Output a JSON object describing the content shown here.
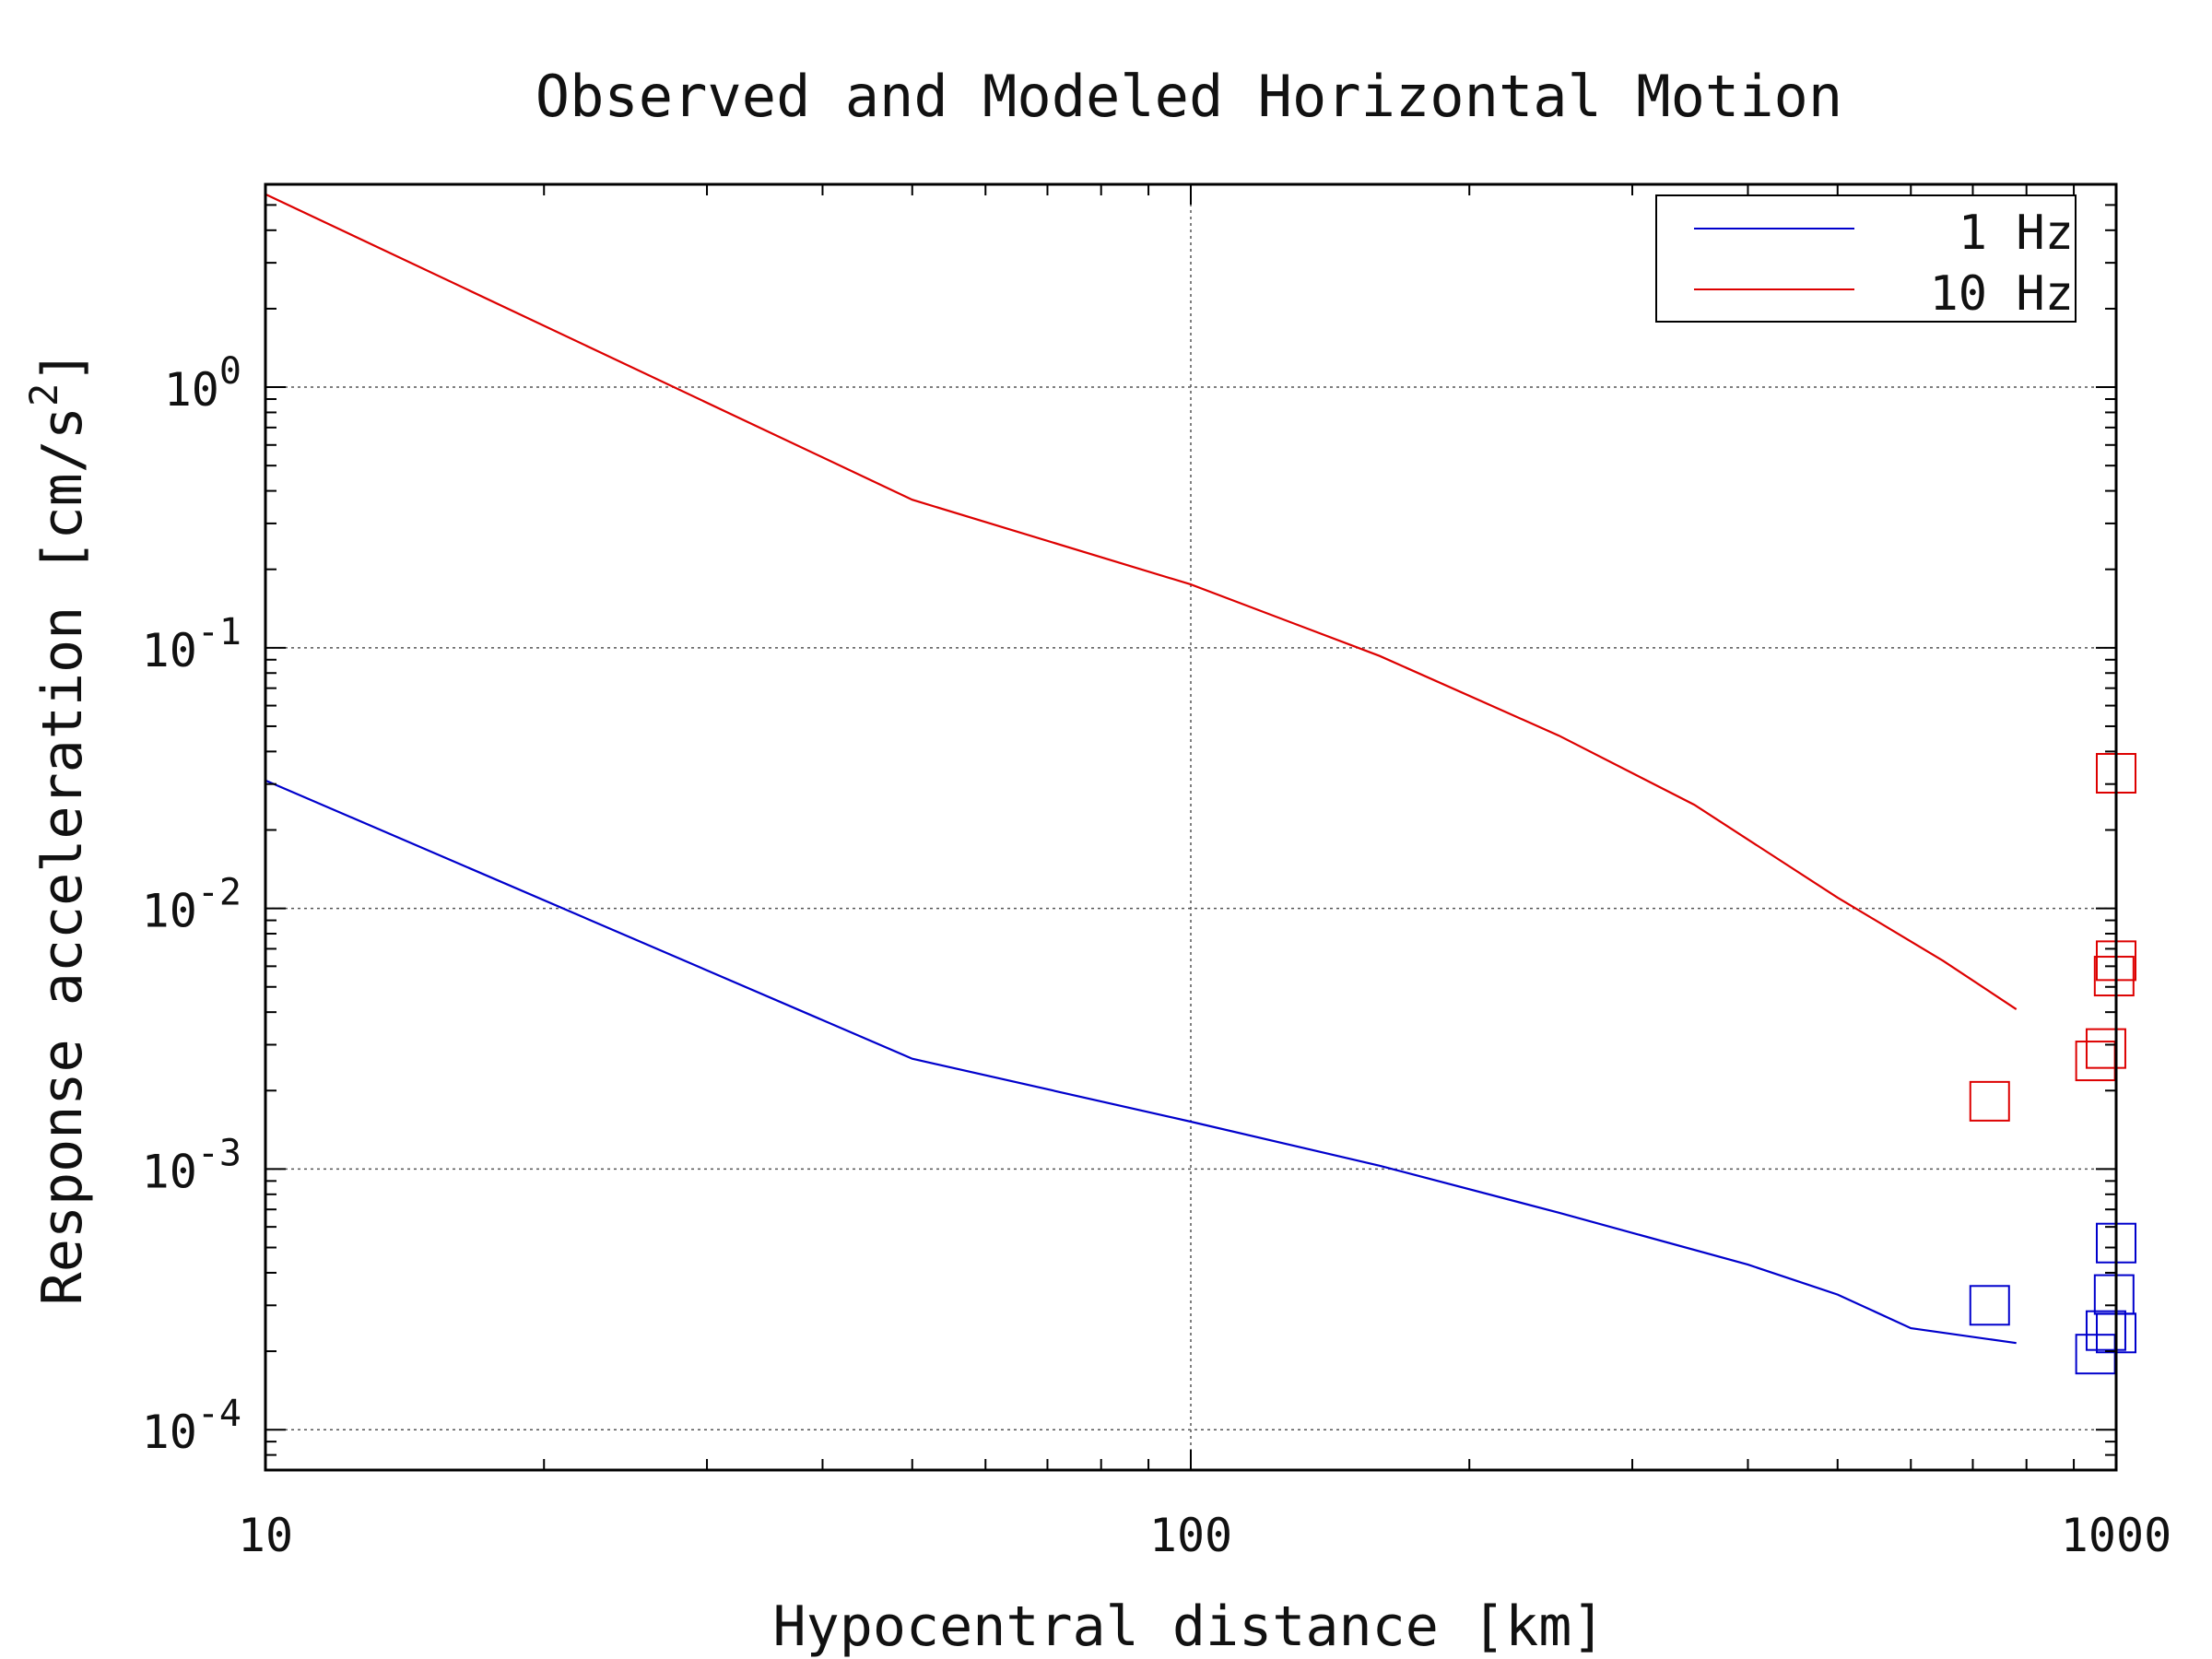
{
  "chart_data": {
    "type": "line",
    "title": "Observed and Modeled Horizontal Motion",
    "xlabel": "Hypocentral distance [km]",
    "ylabel_main": "Response acceleration [cm/s",
    "ylabel_sup": "2",
    "ylabel_end": "]",
    "x_scale": "log",
    "y_scale": "log",
    "xlim": [
      10,
      1000
    ],
    "ylim": [
      7e-05,
      6
    ],
    "grid": true,
    "legend_position": "top-right",
    "x_ticks": [
      {
        "value": 10,
        "label": "10"
      },
      {
        "value": 100,
        "label": "100"
      },
      {
        "value": 1000,
        "label": "1000"
      }
    ],
    "y_ticks": [
      {
        "value": 1,
        "base": "10",
        "exp": "0"
      },
      {
        "value": 0.1,
        "base": "10",
        "exp": "-1"
      },
      {
        "value": 0.01,
        "base": "10",
        "exp": "-2"
      },
      {
        "value": 0.001,
        "base": "10",
        "exp": "-3"
      },
      {
        "value": 0.0001,
        "base": "10",
        "exp": "-4"
      }
    ],
    "series": [
      {
        "name": "1 Hz",
        "color": "#0000cc",
        "line": [
          [
            10,
            0.031
          ],
          [
            50,
            0.00265
          ],
          [
            100,
            0.00152
          ],
          [
            160,
            0.00103
          ],
          [
            250,
            0.00068
          ],
          [
            400,
            0.00043
          ],
          [
            500,
            0.00033
          ],
          [
            600,
            0.000245
          ],
          [
            780,
            0.000215
          ]
        ],
        "points": [
          [
            730,
            0.0003
          ],
          [
            950,
            0.000195
          ],
          [
            975,
            0.00024
          ],
          [
            1000,
            0.00052
          ],
          [
            995,
            0.00033
          ],
          [
            1000,
            0.000235
          ]
        ]
      },
      {
        "name": "10 Hz",
        "color": "#dd0000",
        "line": [
          [
            10,
            5.5
          ],
          [
            50,
            0.37
          ],
          [
            100,
            0.175
          ],
          [
            160,
            0.093
          ],
          [
            250,
            0.046
          ],
          [
            350,
            0.025
          ],
          [
            500,
            0.011
          ],
          [
            650,
            0.0063
          ],
          [
            780,
            0.0041
          ]
        ],
        "points": [
          [
            730,
            0.00182
          ],
          [
            950,
            0.0026
          ],
          [
            975,
            0.0029
          ],
          [
            1000,
            0.033
          ],
          [
            1000,
            0.0063
          ],
          [
            995,
            0.0055
          ]
        ]
      }
    ]
  }
}
